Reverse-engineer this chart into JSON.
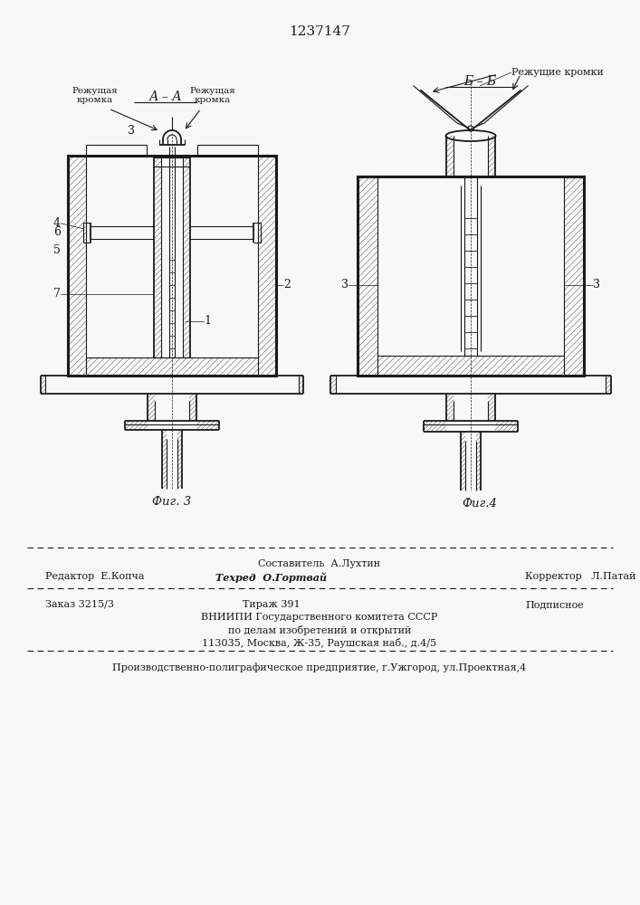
{
  "title_number": "1237147",
  "bg_color": "#f8f8f5",
  "fig_width": 7.07,
  "fig_height": 10.0,
  "footer_line1_center": "Составитель  А.Лухтин",
  "footer_line2_left": "Редактор  Е.Копча",
  "footer_line2_center": "Техред  О.Гортвай",
  "footer_line2_right": "Корректор   Л.Патай",
  "footer_line3_left": "Заказ 3215/3",
  "footer_line3_center": "Тираж 391",
  "footer_line3_right": "Подписное",
  "footer_line4": "ВНИИПИ Государственного комитета СССР",
  "footer_line5": "по делам изобретений и открытий",
  "footer_line6": "113035, Москва, Ж-35, Раушская наб., д.4/5",
  "footer_last": "Производственно-полиграфическое предприятие, г.Ужгород, ул.Проектная,4"
}
